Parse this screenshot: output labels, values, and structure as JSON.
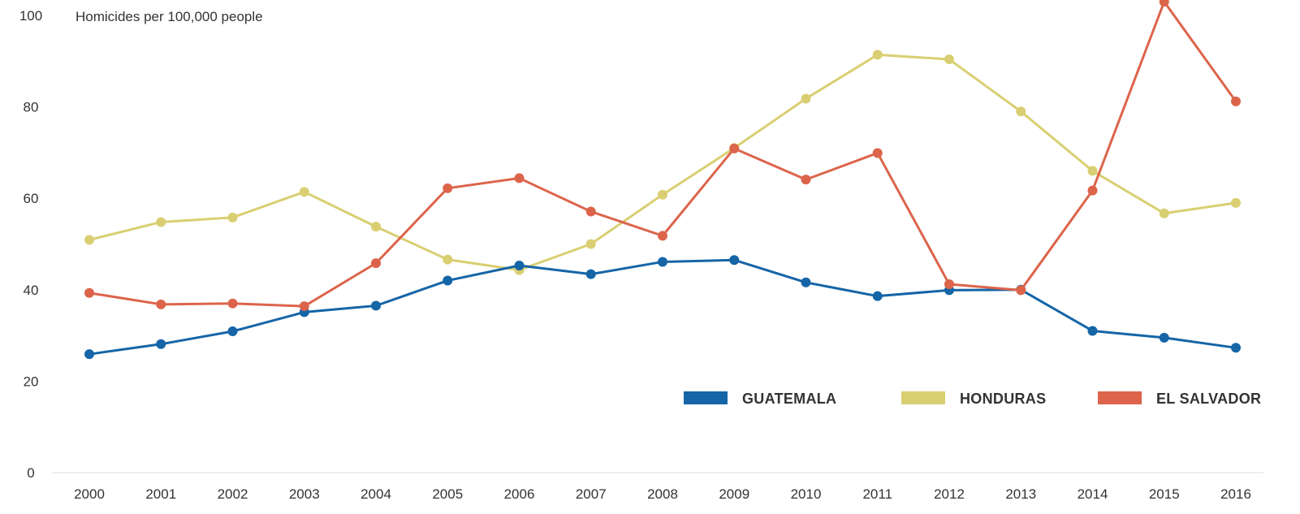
{
  "chart_data": {
    "type": "line",
    "subtitle": "Homicides per 100,000 people",
    "x": [
      "2000",
      "2001",
      "2002",
      "2003",
      "2004",
      "2005",
      "2006",
      "2007",
      "2008",
      "2009",
      "2010",
      "2011",
      "2012",
      "2013",
      "2014",
      "2015",
      "2016"
    ],
    "ylim": [
      0,
      100
    ],
    "yticks": [
      "0",
      "20",
      "40",
      "60",
      "80",
      "100"
    ],
    "grid": false,
    "legend_position": "lower-right",
    "series": [
      {
        "name": "GUATEMALA",
        "color": "#1565a7",
        "values": [
          25.9,
          28.1,
          30.9,
          35.1,
          36.5,
          42.0,
          45.3,
          43.4,
          46.1,
          46.5,
          41.6,
          38.6,
          39.9,
          40.0,
          31.0,
          29.5,
          27.3
        ]
      },
      {
        "name": "HONDURAS",
        "color": "#d9cf72",
        "values": [
          50.9,
          54.8,
          55.8,
          61.4,
          53.8,
          46.6,
          44.3,
          50.0,
          60.8,
          71.0,
          81.8,
          91.4,
          90.4,
          79.0,
          66.0,
          56.7,
          59.0
        ]
      },
      {
        "name": "EL SALVADOR",
        "color": "#dc644b",
        "values": [
          39.3,
          36.8,
          37.0,
          36.4,
          45.8,
          62.2,
          64.4,
          57.1,
          51.8,
          70.9,
          64.1,
          69.9,
          41.2,
          39.9,
          61.7,
          103.0,
          81.2
        ]
      }
    ]
  }
}
